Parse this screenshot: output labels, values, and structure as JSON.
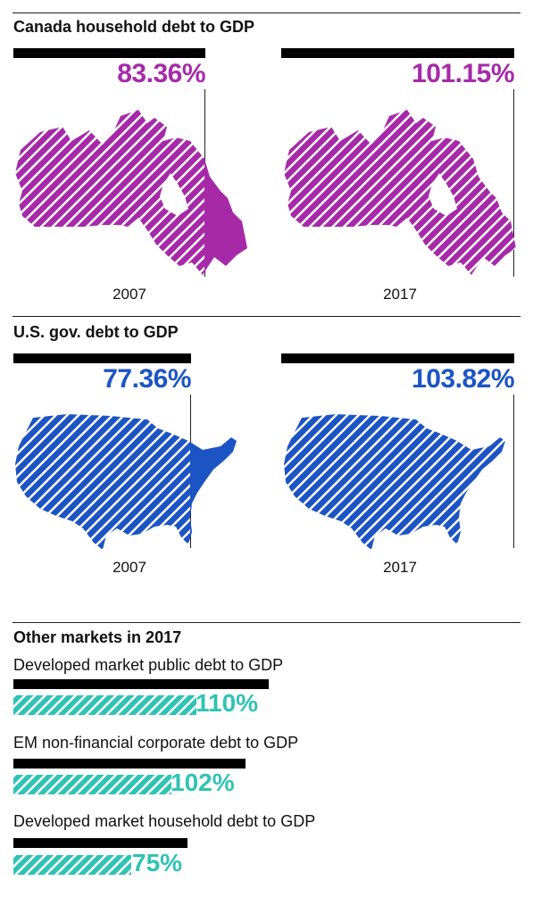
{
  "colors": {
    "canada": "#a62aa8",
    "us": "#1d54c4",
    "teal": "#2fc3b4",
    "cap": "#000000"
  },
  "chart_data": [
    {
      "type": "bar",
      "title": "Canada household debt to GDP",
      "categories": [
        "2007",
        "2017"
      ],
      "values": [
        83.36,
        101.15
      ],
      "value_labels": [
        "83.36%",
        "101.15%"
      ]
    },
    {
      "type": "bar",
      "title": "U.S. gov. debt to GDP",
      "categories": [
        "2007",
        "2017"
      ],
      "values": [
        77.36,
        103.82
      ],
      "value_labels": [
        "77.36%",
        "103.82%"
      ]
    },
    {
      "type": "bar",
      "title": "Other markets in 2017",
      "categories": [
        "Developed market public debt to GDP",
        "EM non-financial corporate debt to GDP",
        "Developed market household debt to GDP"
      ],
      "values": [
        110,
        102,
        75
      ],
      "value_labels": [
        "110%",
        "102%",
        "75%"
      ]
    }
  ]
}
